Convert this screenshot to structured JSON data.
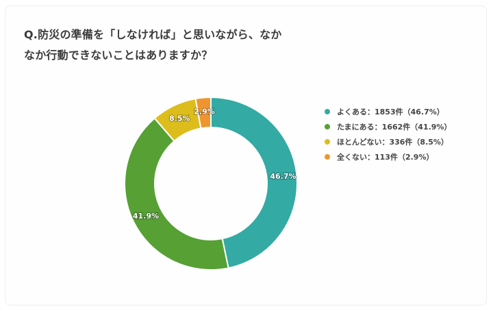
{
  "title": "Q.防災の準備を「しなければ」と思いながら、なかなか行動できないことはありますか？",
  "title_lines": [
    "Q.防災の準備を「しなければ」と思いながら、なか",
    "なか行動できないことはありますか？"
  ],
  "legend": [
    {
      "label": "よくある：1853件（46.7%）",
      "color": "#33aaa3"
    },
    {
      "label": "たまにある：1662件（41.9%）",
      "color": "#56a034"
    },
    {
      "label": "ほとんどない：336件（8.5%）",
      "color": "#dcbd1c"
    },
    {
      "label": "全くない：113件（2.9%）",
      "color": "#ef9530"
    }
  ],
  "chart_data": {
    "type": "pie",
    "subtype": "donut",
    "title": "Q.防災の準備を「しなければ」と思いながら、なかなか行動できないことはありますか？",
    "categories": [
      "よくある",
      "たまにある",
      "ほとんどない",
      "全くない"
    ],
    "values": [
      1853,
      1662,
      336,
      113
    ],
    "percentages": [
      46.7,
      41.9,
      8.5,
      2.9
    ],
    "data_labels": [
      "46.7%",
      "41.9%",
      "8.5%",
      "2.9%"
    ],
    "colors": [
      "#33aaa3",
      "#56a034",
      "#dcbd1c",
      "#ef9530"
    ],
    "legend_position": "right",
    "start_angle": "12 o'clock, clockwise"
  }
}
